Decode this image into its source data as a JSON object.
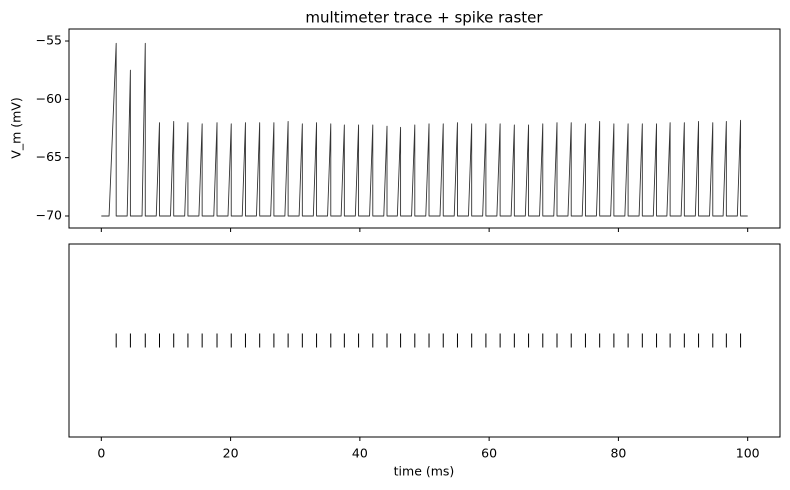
{
  "chart_data": [
    {
      "type": "line",
      "title": "multimeter trace + spike raster",
      "ylabel": "V_m (mV)",
      "xlim": [
        -5,
        105
      ],
      "xticks": [
        0,
        20,
        40,
        60,
        80,
        100
      ],
      "show_xtick_labels": false,
      "ylim": [
        -71.03,
        -53.97
      ],
      "yticks": [
        {
          "value": -55,
          "label": "−55"
        },
        {
          "value": -60,
          "label": "−60"
        },
        {
          "value": -65,
          "label": "−65"
        },
        {
          "value": -70,
          "label": "−70"
        }
      ],
      "series": [
        {
          "color": "#333333",
          "x": [
            0,
            1.2,
            2.3,
            2.3,
            4.0,
            4.5,
            4.5,
            6.3,
            6.8,
            6.8,
            8.5,
            9.0,
            9.0,
            10.7,
            11.2,
            11.2,
            12.9,
            13.4,
            13.4,
            15.1,
            15.6,
            15.6,
            17.4,
            17.9,
            17.9,
            19.6,
            20.1,
            20.1,
            21.8,
            22.3,
            22.3,
            24.0,
            24.5,
            24.5,
            26.2,
            26.7,
            26.7,
            28.4,
            28.9,
            28.9,
            30.6,
            31.1,
            31.1,
            32.8,
            33.3,
            33.3,
            35.0,
            35.5,
            35.5,
            37.1,
            37.6,
            37.6,
            39.3,
            39.8,
            39.8,
            41.5,
            42.0,
            42.0,
            43.7,
            44.2,
            44.2,
            45.8,
            46.3,
            46.3,
            48.0,
            48.5,
            48.5,
            50.2,
            50.7,
            50.7,
            52.4,
            52.9,
            52.9,
            54.6,
            55.1,
            55.1,
            56.8,
            57.3,
            57.3,
            59.0,
            59.5,
            59.5,
            61.2,
            61.7,
            61.7,
            63.4,
            63.9,
            63.9,
            65.6,
            66.1,
            66.1,
            67.8,
            68.3,
            68.3,
            70.0,
            70.5,
            70.5,
            72.2,
            72.7,
            72.7,
            74.4,
            74.9,
            74.9,
            76.6,
            77.1,
            77.1,
            78.8,
            79.3,
            79.3,
            81.0,
            81.5,
            81.5,
            83.2,
            83.7,
            83.7,
            85.4,
            85.9,
            85.9,
            87.5,
            88.0,
            88.0,
            89.7,
            90.2,
            90.2,
            91.9,
            92.4,
            92.4,
            94.1,
            94.6,
            94.6,
            96.2,
            96.7,
            96.7,
            98.4,
            98.9,
            98.9,
            100
          ],
          "values": [
            -70,
            -70,
            -55.2,
            -70,
            -70,
            -57.5,
            -70,
            -70,
            -55.2,
            -70,
            -70,
            -62.0,
            -70,
            -70,
            -61.9,
            -70,
            -70,
            -62.0,
            -70,
            -70,
            -62.1,
            -70,
            -70,
            -62.0,
            -70,
            -70,
            -62.1,
            -70,
            -70,
            -62.0,
            -70,
            -70,
            -62.0,
            -70,
            -70,
            -62.0,
            -70,
            -70,
            -61.9,
            -70,
            -70,
            -62.1,
            -70,
            -70,
            -62.0,
            -70,
            -70,
            -62.1,
            -70,
            -70,
            -62.2,
            -70,
            -70,
            -62.2,
            -70,
            -70,
            -62.2,
            -70,
            -70,
            -62.3,
            -70,
            -70,
            -62.4,
            -70,
            -70,
            -62.2,
            -70,
            -70,
            -62.1,
            -70,
            -70,
            -62.1,
            -70,
            -70,
            -62.0,
            -70,
            -70,
            -62.1,
            -70,
            -70,
            -62.1,
            -70,
            -70,
            -62.1,
            -70,
            -70,
            -62.2,
            -70,
            -70,
            -62.2,
            -70,
            -70,
            -62.1,
            -70,
            -70,
            -62.0,
            -70,
            -70,
            -62.0,
            -70,
            -70,
            -62.1,
            -70,
            -70,
            -61.9,
            -70,
            -70,
            -62.1,
            -70,
            -70,
            -62.1,
            -70,
            -70,
            -62.1,
            -70,
            -70,
            -62.1,
            -70,
            -70,
            -62.0,
            -70,
            -70,
            -62.0,
            -70,
            -70,
            -61.9,
            -70,
            -70,
            -62.0,
            -70,
            -70,
            -61.9,
            -70,
            -70,
            -61.8,
            -70,
            -70
          ]
        }
      ]
    },
    {
      "type": "raster",
      "xlabel": "time (ms)",
      "color": "#000000",
      "xlim": [
        -5,
        105
      ],
      "xticks": [
        0,
        20,
        40,
        60,
        80,
        100
      ],
      "spike_times": [
        2.3,
        4.5,
        6.8,
        9.0,
        11.2,
        13.4,
        15.6,
        17.9,
        20.1,
        22.3,
        24.5,
        26.7,
        28.9,
        31.1,
        33.3,
        35.5,
        37.6,
        39.8,
        42.0,
        44.2,
        46.3,
        48.5,
        50.7,
        52.9,
        55.1,
        57.3,
        59.5,
        61.7,
        63.9,
        66.1,
        68.3,
        70.5,
        72.7,
        74.9,
        77.1,
        79.3,
        81.5,
        83.7,
        85.9,
        88.0,
        90.2,
        92.4,
        94.6,
        96.7,
        98.9
      ]
    }
  ]
}
